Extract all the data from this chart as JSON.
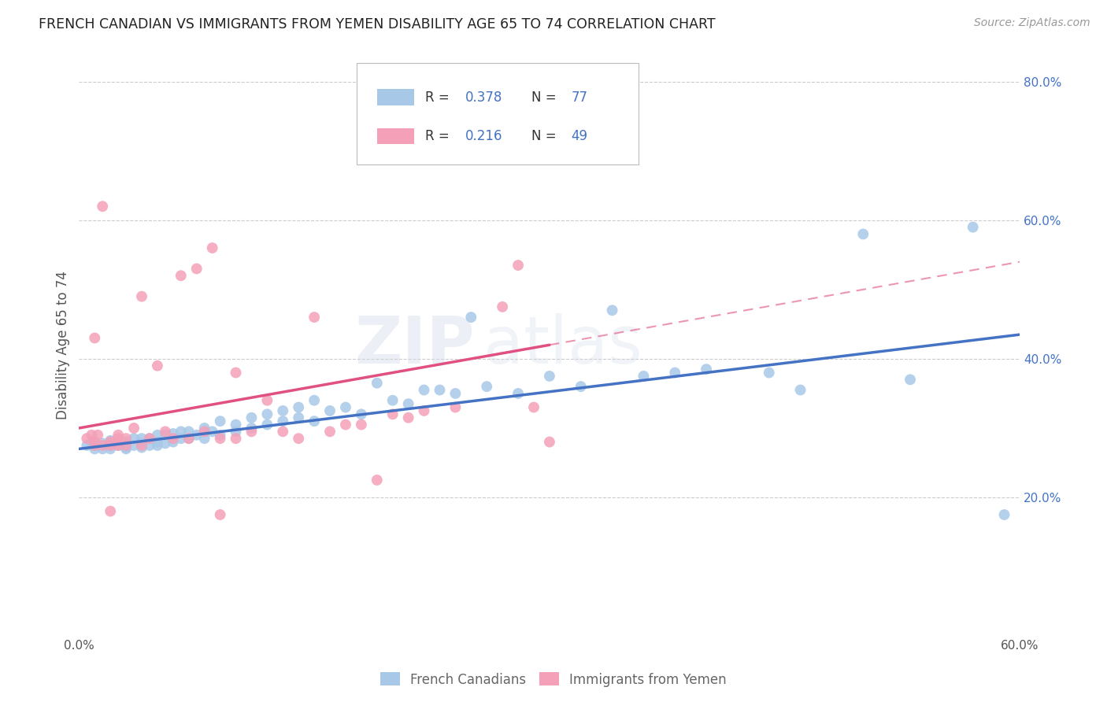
{
  "title": "FRENCH CANADIAN VS IMMIGRANTS FROM YEMEN DISABILITY AGE 65 TO 74 CORRELATION CHART",
  "source": "Source: ZipAtlas.com",
  "ylabel": "Disability Age 65 to 74",
  "xlim": [
    0.0,
    0.6
  ],
  "ylim": [
    0.0,
    0.84
  ],
  "xtick_labels": [
    "0.0%",
    "",
    "",
    "",
    "",
    "",
    "60.0%"
  ],
  "xtick_vals": [
    0.0,
    0.1,
    0.2,
    0.3,
    0.4,
    0.5,
    0.6
  ],
  "ytick_vals": [
    0.2,
    0.4,
    0.6,
    0.8
  ],
  "ytick_labels": [
    "20.0%",
    "40.0%",
    "60.0%",
    "80.0%"
  ],
  "legend_label1": "French Canadians",
  "legend_label2": "Immigrants from Yemen",
  "R1": "0.378",
  "N1": "77",
  "R2": "0.216",
  "N2": "49",
  "color_blue": "#a8c8e8",
  "color_pink": "#f4a0b8",
  "color_blue_line": "#4472c4",
  "color_pink_line": "#e05080",
  "color_axis_text": "#4472c4",
  "watermark": "ZIPatlas",
  "blue_x": [
    0.005,
    0.008,
    0.01,
    0.01,
    0.01,
    0.015,
    0.015,
    0.02,
    0.02,
    0.02,
    0.02,
    0.025,
    0.025,
    0.03,
    0.03,
    0.03,
    0.03,
    0.035,
    0.035,
    0.04,
    0.04,
    0.04,
    0.045,
    0.045,
    0.05,
    0.05,
    0.05,
    0.055,
    0.055,
    0.06,
    0.06,
    0.065,
    0.065,
    0.07,
    0.07,
    0.075,
    0.08,
    0.08,
    0.085,
    0.09,
    0.09,
    0.1,
    0.1,
    0.11,
    0.11,
    0.12,
    0.12,
    0.13,
    0.13,
    0.14,
    0.14,
    0.15,
    0.15,
    0.16,
    0.17,
    0.18,
    0.19,
    0.2,
    0.21,
    0.22,
    0.23,
    0.24,
    0.25,
    0.26,
    0.28,
    0.3,
    0.32,
    0.34,
    0.36,
    0.38,
    0.4,
    0.44,
    0.46,
    0.5,
    0.53,
    0.57,
    0.59
  ],
  "blue_y": [
    0.275,
    0.278,
    0.27,
    0.28,
    0.275,
    0.27,
    0.278,
    0.27,
    0.275,
    0.28,
    0.282,
    0.275,
    0.28,
    0.27,
    0.272,
    0.275,
    0.28,
    0.275,
    0.285,
    0.272,
    0.278,
    0.285,
    0.275,
    0.285,
    0.275,
    0.28,
    0.29,
    0.278,
    0.29,
    0.28,
    0.292,
    0.285,
    0.295,
    0.285,
    0.295,
    0.29,
    0.285,
    0.3,
    0.295,
    0.29,
    0.31,
    0.295,
    0.305,
    0.3,
    0.315,
    0.305,
    0.32,
    0.31,
    0.325,
    0.315,
    0.33,
    0.31,
    0.34,
    0.325,
    0.33,
    0.32,
    0.365,
    0.34,
    0.335,
    0.355,
    0.355,
    0.35,
    0.46,
    0.36,
    0.35,
    0.375,
    0.36,
    0.47,
    0.375,
    0.38,
    0.385,
    0.38,
    0.355,
    0.58,
    0.37,
    0.59,
    0.175
  ],
  "pink_x": [
    0.005,
    0.008,
    0.01,
    0.01,
    0.01,
    0.012,
    0.015,
    0.015,
    0.02,
    0.02,
    0.02,
    0.025,
    0.025,
    0.025,
    0.03,
    0.03,
    0.035,
    0.04,
    0.04,
    0.045,
    0.05,
    0.055,
    0.06,
    0.065,
    0.07,
    0.075,
    0.08,
    0.085,
    0.09,
    0.09,
    0.1,
    0.1,
    0.11,
    0.12,
    0.13,
    0.14,
    0.15,
    0.16,
    0.17,
    0.18,
    0.19,
    0.2,
    0.21,
    0.22,
    0.24,
    0.27,
    0.28,
    0.29,
    0.3
  ],
  "pink_y": [
    0.285,
    0.29,
    0.275,
    0.28,
    0.43,
    0.29,
    0.275,
    0.62,
    0.275,
    0.28,
    0.18,
    0.275,
    0.285,
    0.29,
    0.275,
    0.285,
    0.3,
    0.275,
    0.49,
    0.285,
    0.39,
    0.295,
    0.285,
    0.52,
    0.285,
    0.53,
    0.295,
    0.56,
    0.285,
    0.175,
    0.285,
    0.38,
    0.295,
    0.34,
    0.295,
    0.285,
    0.46,
    0.295,
    0.305,
    0.305,
    0.225,
    0.32,
    0.315,
    0.325,
    0.33,
    0.475,
    0.535,
    0.33,
    0.28
  ]
}
